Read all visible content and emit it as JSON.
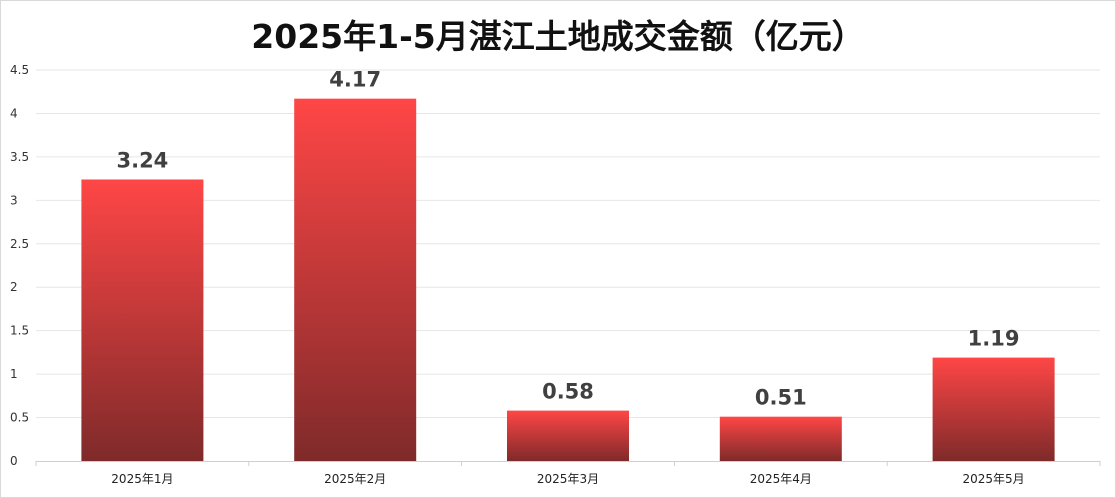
{
  "chart_data": {
    "type": "bar",
    "title": "2025年1-5月湛江土地成交金额（亿元）",
    "categories": [
      "2025年1月",
      "2025年2月",
      "2025年3月",
      "2025年4月",
      "2025年5月"
    ],
    "values": [
      3.24,
      4.17,
      0.58,
      0.51,
      1.19
    ],
    "data_labels": [
      "3.24",
      "4.17",
      "0.58",
      "0.51",
      "1.19"
    ],
    "ylim": [
      0,
      4.5
    ],
    "yticks": [
      "0",
      "0.5",
      "1",
      "1.5",
      "2",
      "2.5",
      "3",
      "3.5",
      "4",
      "4.5"
    ],
    "grid": true,
    "legend": "none",
    "colors": {
      "bar_top": "#ff4646",
      "bar_bottom": "#7f2a2a",
      "grid": "#e6e6e6"
    }
  }
}
